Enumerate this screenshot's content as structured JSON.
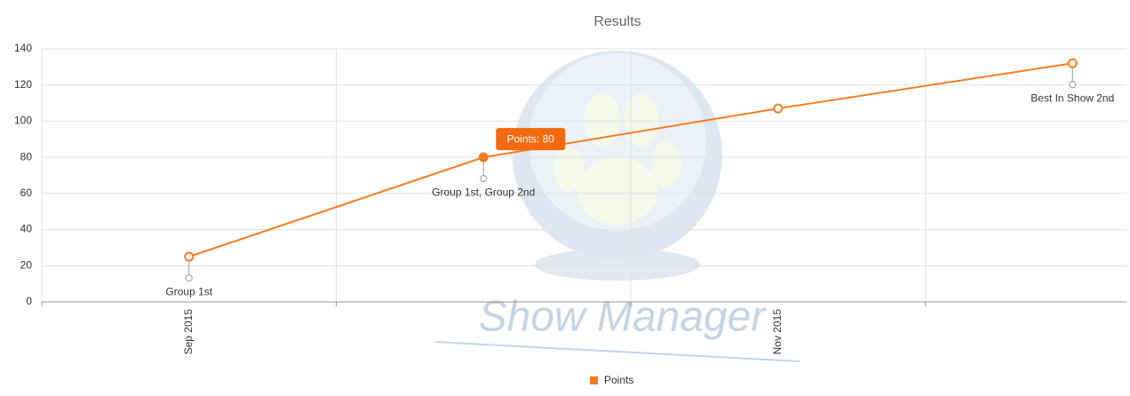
{
  "chart_data": {
    "type": "line",
    "title": "Results",
    "categories": [
      "Sep 2015",
      null,
      "Nov 2015",
      null
    ],
    "series": [
      {
        "name": "Points",
        "color": "#f57c22",
        "values": [
          25,
          80,
          107,
          132
        ]
      }
    ],
    "annotations": [
      "Group 1st",
      "Group 1st, Group 2nd",
      null,
      "Best In Show 2nd"
    ],
    "tooltip": "Points: 80",
    "ylim": [
      0,
      140
    ],
    "yticks": [
      0,
      20,
      40,
      60,
      80,
      100,
      120,
      140
    ],
    "grid": true,
    "legend": "bottom"
  },
  "watermark": "Show Manager"
}
